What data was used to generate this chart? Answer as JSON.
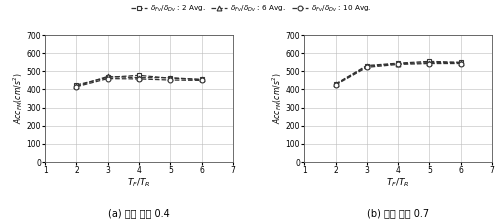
{
  "x": [
    2,
    3,
    4,
    5,
    6
  ],
  "panel_a": {
    "series_2": [
      425,
      467,
      478,
      462,
      455
    ],
    "series_6": [
      418,
      472,
      465,
      465,
      455
    ],
    "series_10": [
      415,
      460,
      458,
      452,
      450
    ]
  },
  "panel_b": {
    "series_2": [
      430,
      532,
      545,
      555,
      550
    ],
    "series_6": [
      428,
      528,
      542,
      548,
      548
    ],
    "series_10": [
      425,
      522,
      538,
      543,
      543
    ]
  },
  "xlabel": "$T_F/T_R$",
  "ylabel_a": "$Acc_{FM}(cm/s^2)$",
  "ylabel_b": "$Acc_{FM}(cm/s^2)$",
  "ylim": [
    0,
    700
  ],
  "yticks": [
    0,
    100,
    200,
    300,
    400,
    500,
    600,
    700
  ],
  "xlim": [
    1,
    7
  ],
  "xticks": [
    1,
    2,
    3,
    4,
    5,
    6,
    7
  ],
  "legend_labels": [
    "$\\delta_{Fv}/\\delta_{Dv}$ : 2 Avg.",
    "$\\delta_{Fv}/\\delta_{Dv}$ : 6 Avg.",
    "$\\delta_{Fv}/\\delta_{Dv}$ : 10 Avg."
  ],
  "subtitle_a": "(a) 내력 비율 0.4",
  "subtitle_b": "(b) 내력 비율 0.7",
  "line_color": "#333333",
  "line_styles": [
    "--",
    "--",
    "--"
  ],
  "markers": [
    "s",
    "^",
    "o"
  ],
  "marker_size": 3.5,
  "background_color": "#ffffff",
  "grid_color": "#bbbbbb"
}
